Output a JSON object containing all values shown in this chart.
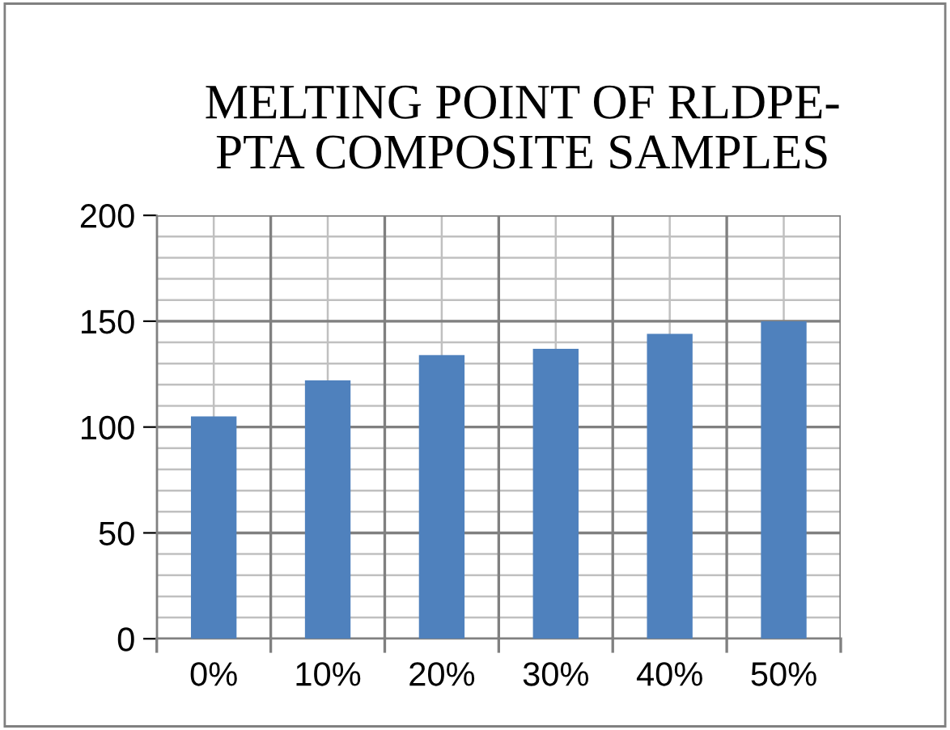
{
  "chart_data": {
    "type": "bar",
    "title": "MELTING POINT OF RLDPE-\nPTA COMPOSITE SAMPLES",
    "categories": [
      "0%",
      "10%",
      "20%",
      "30%",
      "40%",
      "50%"
    ],
    "values": [
      105,
      122,
      134,
      137,
      144,
      150
    ],
    "color": "#4f81bd",
    "ylim": [
      0,
      200
    ],
    "yticks": [
      0,
      50,
      100,
      150,
      200
    ],
    "grid": true
  }
}
